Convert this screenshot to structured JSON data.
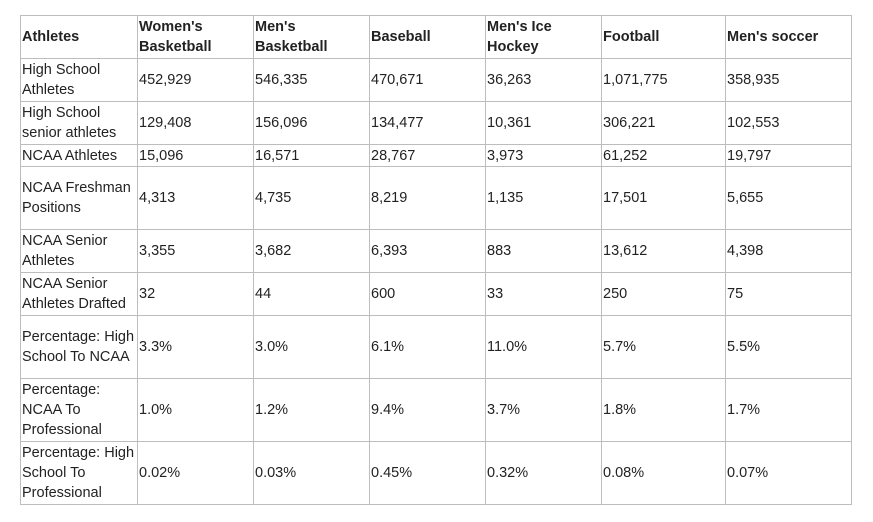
{
  "headers": [
    "Athletes",
    "Women's Basketball",
    "Men's Basketball",
    "Baseball",
    "Men's Ice Hockey",
    "Football",
    "Men's soccer"
  ],
  "rows": [
    {
      "label": "High School Athletes",
      "values": [
        "452,929",
        "546,335",
        "470,671",
        "36,263",
        "1,071,775",
        "358,935"
      ]
    },
    {
      "label": "High School senior athletes",
      "values": [
        "129,408",
        "156,096",
        "134,477",
        "10,361",
        "306,221",
        "102,553"
      ]
    },
    {
      "label": "NCAA Athletes",
      "values": [
        "15,096",
        "16,571",
        "28,767",
        "3,973",
        "61,252",
        "19,797"
      ]
    },
    {
      "label": "NCAA Freshman Positions",
      "values": [
        "4,313",
        "4,735",
        "8,219",
        "1,135",
        "17,501",
        "5,655"
      ]
    },
    {
      "label": "NCAA Senior Athletes",
      "values": [
        "3,355",
        "3,682",
        "6,393",
        "883",
        "13,612",
        "4,398"
      ]
    },
    {
      "label": "NCAA Senior Athletes Drafted",
      "values": [
        "32",
        "44",
        "600",
        "33",
        "250",
        "75"
      ]
    },
    {
      "label": "Percentage: High School To NCAA",
      "values": [
        "3.3%",
        "3.0%",
        "6.1%",
        "11.0%",
        "5.7%",
        "5.5%"
      ]
    },
    {
      "label": "Percentage: NCAA To Professional",
      "values": [
        "1.0%",
        "1.2%",
        "9.4%",
        "3.7%",
        "1.8%",
        "1.7%"
      ]
    },
    {
      "label": "Percentage: High School To Professional",
      "values": [
        "0.02%",
        "0.03%",
        "0.45%",
        "0.32%",
        "0.08%",
        "0.07%"
      ]
    }
  ]
}
